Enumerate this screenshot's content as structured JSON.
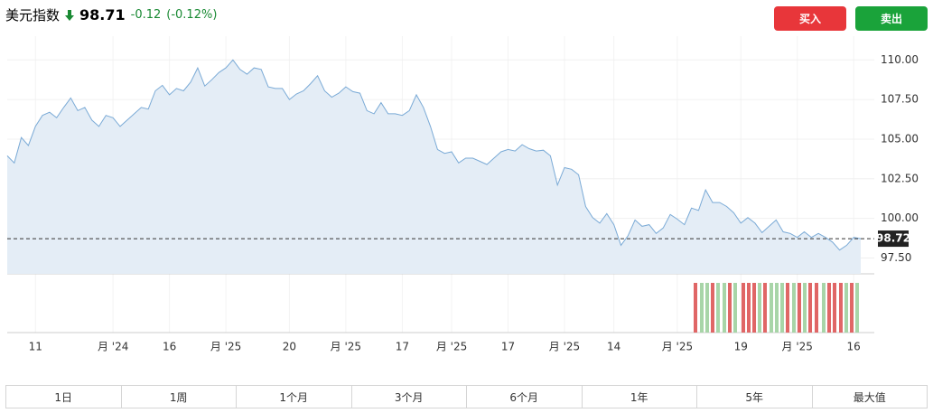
{
  "header": {
    "title": "美元指数",
    "price": "98.71",
    "change": "-0.12",
    "change_pct": "(-0.12%)"
  },
  "buttons": {
    "buy": "买入",
    "sell": "卖出"
  },
  "chart_data": {
    "type": "line",
    "categories": [
      null,
      null,
      null,
      null,
      "11",
      null,
      null,
      null,
      null,
      null,
      null,
      null,
      null,
      null,
      null,
      "月 '24",
      null,
      null,
      null,
      null,
      null,
      null,
      null,
      "16",
      null,
      null,
      null,
      null,
      null,
      null,
      null,
      "月 '25",
      null,
      null,
      null,
      null,
      null,
      null,
      null,
      null,
      "20",
      null,
      null,
      null,
      null,
      null,
      null,
      null,
      "月 '25",
      null,
      null,
      null,
      null,
      null,
      null,
      null,
      "17",
      null,
      null,
      null,
      null,
      null,
      null,
      "月 '25",
      null,
      null,
      null,
      null,
      null,
      null,
      null,
      "17",
      null,
      null,
      null,
      null,
      null,
      null,
      null,
      "月 '25",
      null,
      null,
      null,
      null,
      null,
      null,
      "14",
      null,
      null,
      null,
      null,
      null,
      null,
      null,
      null,
      "月 '25",
      null,
      null,
      null,
      null,
      null,
      null,
      null,
      null,
      "19",
      null,
      null,
      null,
      null,
      null,
      null,
      null,
      "月 '25",
      null,
      null,
      null,
      null,
      null,
      null,
      null,
      "16",
      null
    ],
    "series": [
      {
        "color": "#7aaad6",
        "values": [
          103.95,
          103.5,
          105.1,
          104.6,
          105.8,
          106.5,
          106.7,
          106.35,
          107.0,
          107.6,
          106.8,
          107.0,
          106.2,
          105.8,
          106.5,
          106.35,
          105.8,
          106.2,
          106.6,
          107.0,
          106.9,
          108.05,
          108.4,
          107.8,
          108.2,
          108.05,
          108.6,
          109.5,
          108.35,
          108.75,
          109.2,
          109.5,
          110.0,
          109.4,
          109.1,
          109.5,
          109.4,
          108.3,
          108.2,
          108.2,
          107.5,
          107.85,
          108.05,
          108.5,
          109.0,
          108.05,
          107.65,
          107.9,
          108.3,
          108.0,
          107.9,
          106.8,
          106.6,
          107.3,
          106.6,
          106.6,
          106.5,
          106.8,
          107.8,
          107.0,
          105.8,
          104.35,
          104.1,
          104.2,
          103.5,
          103.8,
          103.8,
          103.6,
          103.4,
          103.8,
          104.2,
          104.35,
          104.25,
          104.65,
          104.4,
          104.25,
          104.3,
          103.95,
          102.1,
          103.2,
          103.1,
          102.75,
          100.75,
          100.05,
          99.7,
          100.3,
          99.6,
          98.3,
          98.9,
          99.9,
          99.5,
          99.6,
          99.05,
          99.4,
          100.25,
          99.95,
          99.6,
          100.65,
          100.5,
          101.8,
          101.0,
          101.0,
          100.75,
          100.35,
          99.7,
          100.05,
          99.7,
          99.1,
          99.5,
          99.9,
          99.15,
          99.05,
          98.8,
          99.15,
          98.8,
          99.05,
          98.8,
          98.5,
          98.0,
          98.3,
          98.8,
          98.72
        ]
      }
    ],
    "ylim": [
      96.5,
      111.5
    ],
    "yticks": [
      {
        "value": 97.5,
        "label": "97.50"
      },
      {
        "value": 100,
        "label": "100.00"
      },
      {
        "value": 102.5,
        "label": "102.50"
      },
      {
        "value": 105,
        "label": "105.00"
      },
      {
        "value": 107.5,
        "label": "107.50"
      },
      {
        "value": 110,
        "label": "110.00"
      }
    ],
    "last_value": 98.72,
    "grid": true
  },
  "ranges": [
    "1日",
    "1周",
    "1个月",
    "3个月",
    "6个月",
    "1年",
    "5年",
    "最大值"
  ]
}
